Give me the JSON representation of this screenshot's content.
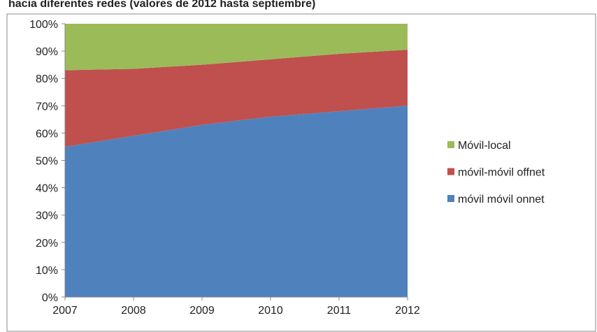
{
  "chart_data": {
    "type": "area",
    "title": "hacia diferentes redes (valores de 2012 hasta septiembre)",
    "x": [
      2007,
      2008,
      2009,
      2010,
      2011,
      2012
    ],
    "xlim": [
      2007,
      2012
    ],
    "xticks": [
      2007,
      2008,
      2009,
      2010,
      2011,
      2012
    ],
    "ylim": [
      0,
      100
    ],
    "yticks": [
      {
        "value": 0,
        "label": "0%"
      },
      {
        "value": 10,
        "label": "10%"
      },
      {
        "value": 20,
        "label": "20%"
      },
      {
        "value": 30,
        "label": "30%"
      },
      {
        "value": 40,
        "label": "40%"
      },
      {
        "value": 50,
        "label": "50%"
      },
      {
        "value": 60,
        "label": "60%"
      },
      {
        "value": 70,
        "label": "70%"
      },
      {
        "value": 80,
        "label": "80%"
      },
      {
        "value": 90,
        "label": "90%"
      },
      {
        "value": 100,
        "label": "100%"
      }
    ],
    "stacked": true,
    "legend": "right",
    "series": [
      {
        "name": "móvil móvil onnet",
        "color": "#4f81bd",
        "values": [
          55,
          59,
          63,
          66,
          68,
          70
        ]
      },
      {
        "name": "móvil-móvil offnet",
        "color": "#c0504d",
        "values": [
          28,
          24.5,
          22,
          21,
          21,
          20.5
        ]
      },
      {
        "name": "Móvil-local",
        "color": "#9bbb59",
        "values": [
          17,
          16.5,
          15,
          13,
          11,
          9.5
        ]
      }
    ]
  }
}
